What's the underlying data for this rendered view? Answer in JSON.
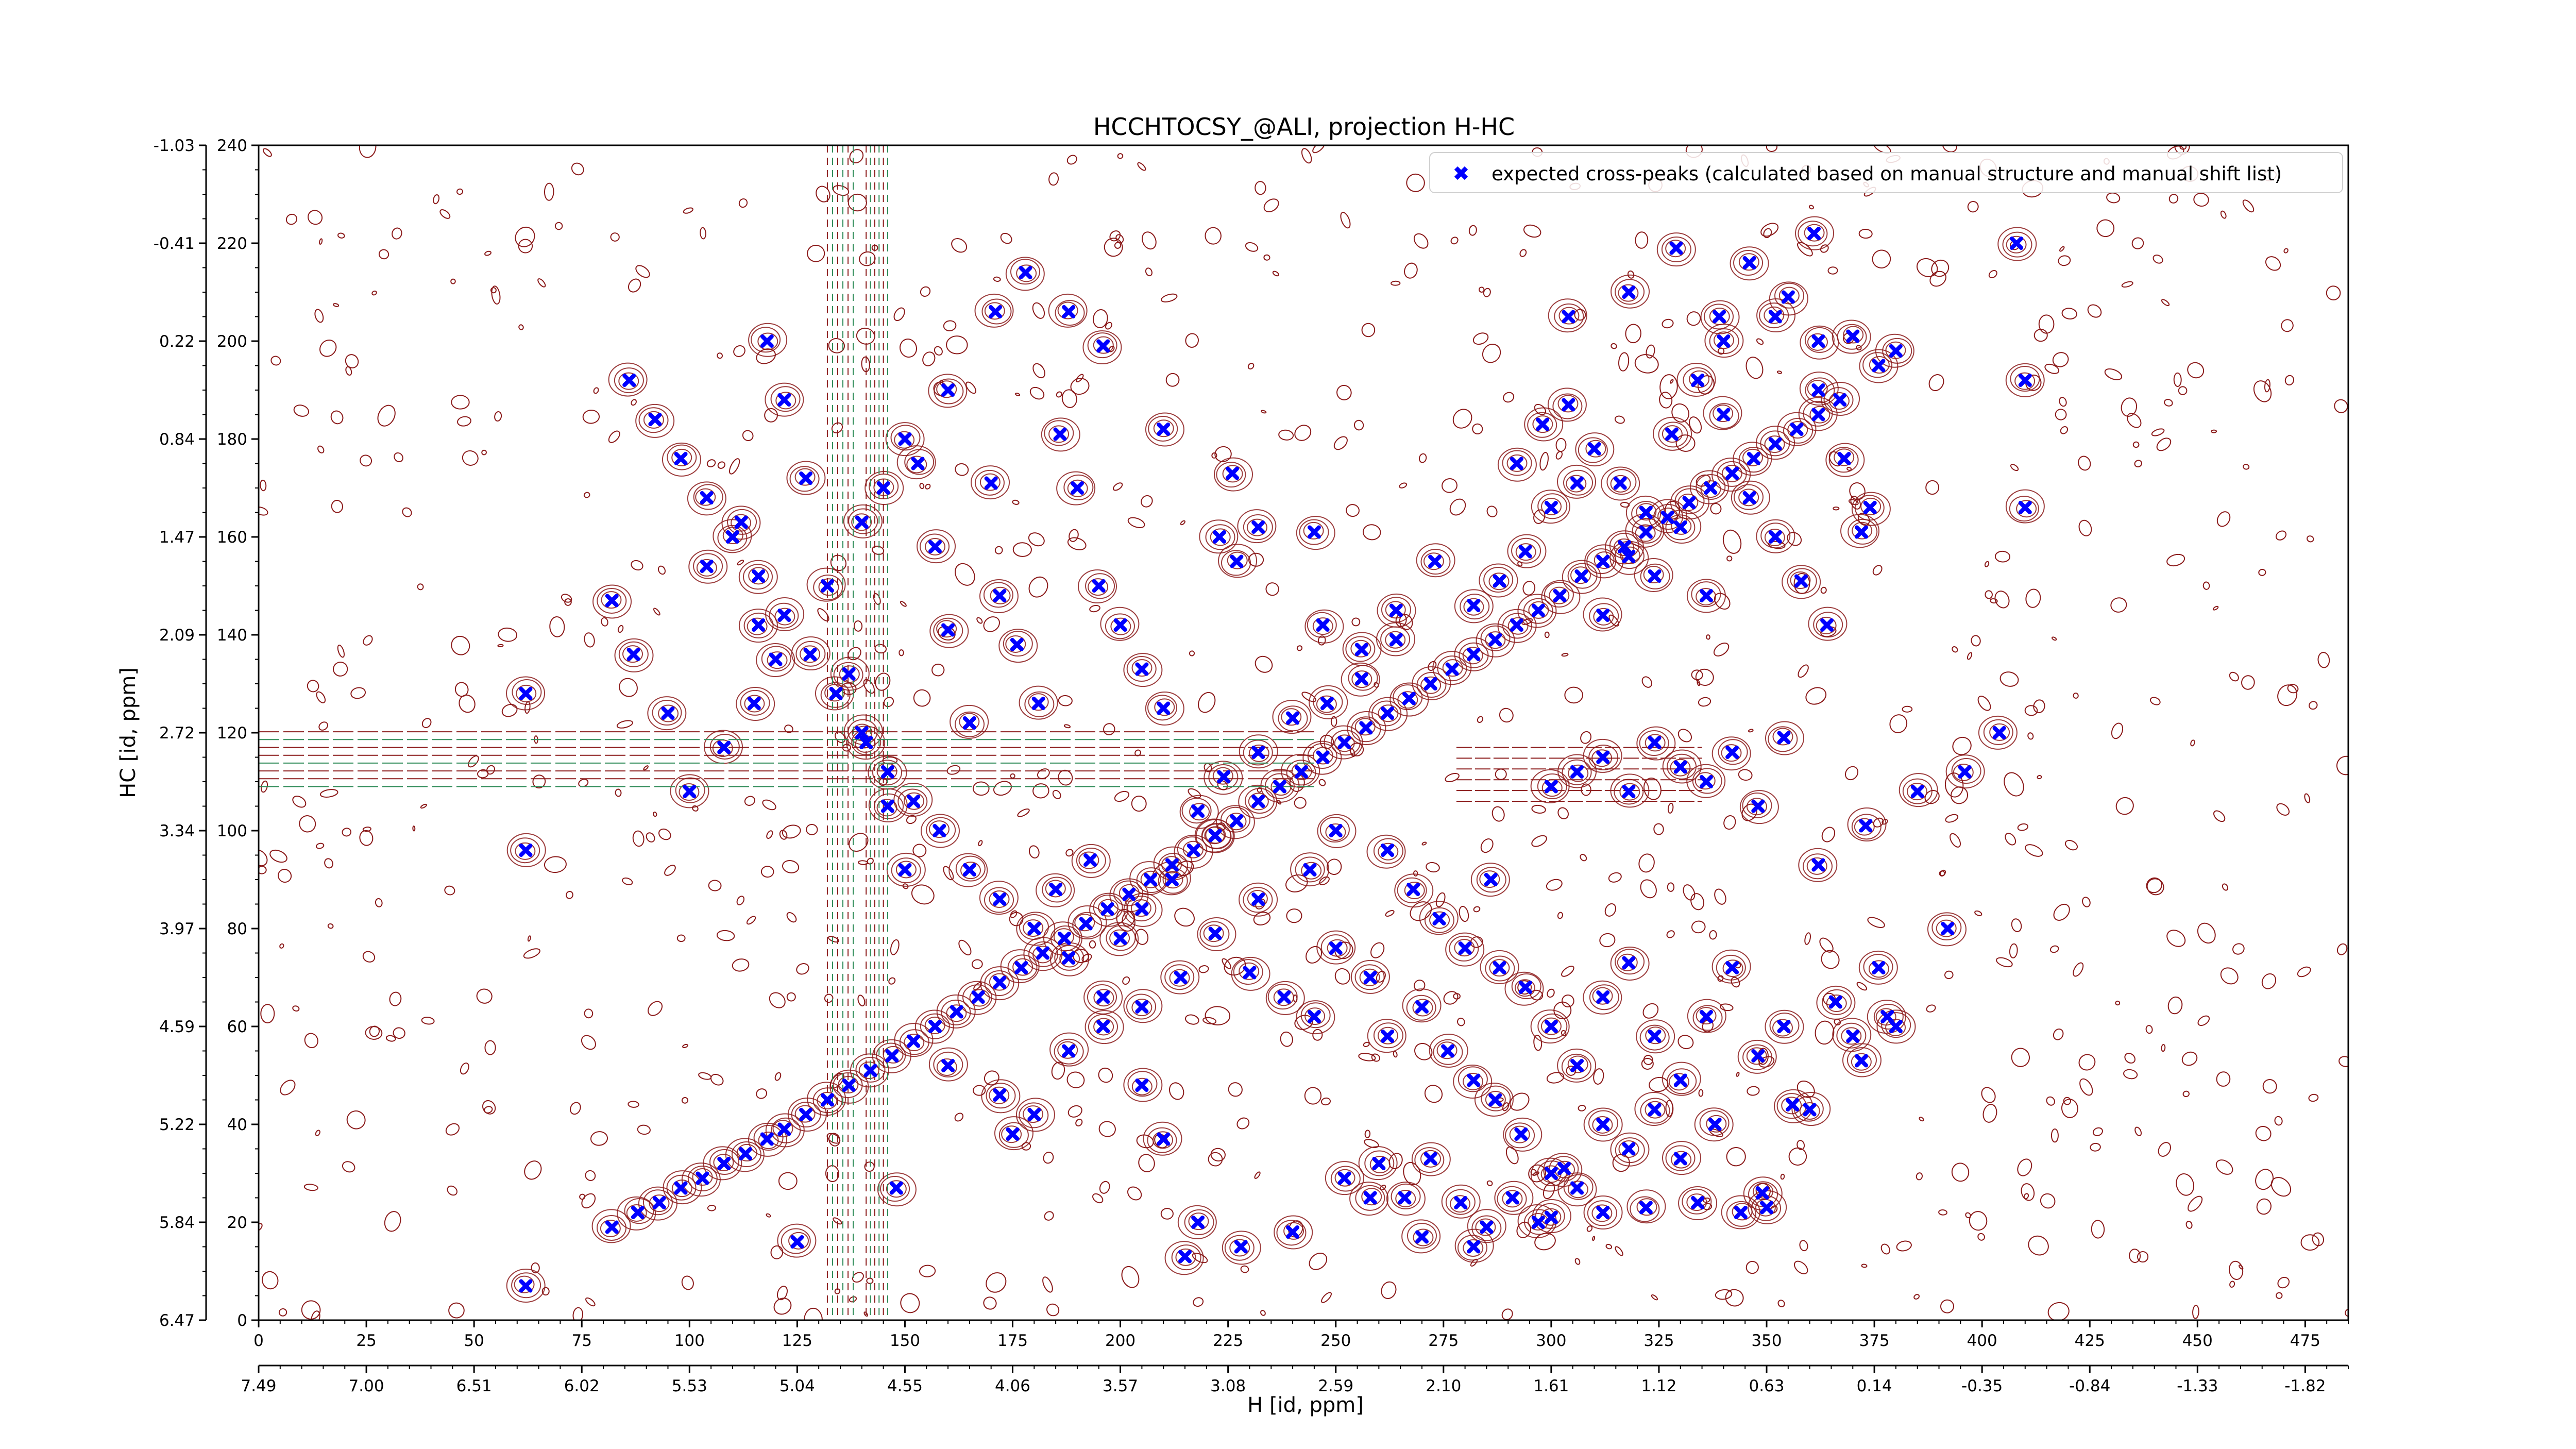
{
  "chart_data": {
    "type": "scatter",
    "title": "HCCHTOCSY_@ALI, projection H-HC",
    "xlabel_top": "",
    "xlabel_bottom": "H [id, ppm]",
    "ylabel": "HC [id, ppm]",
    "legend": {
      "placement": "top-right",
      "entries": [
        "expected cross-peaks (calculated based on manual structure and manual shift list)"
      ]
    },
    "grid": false,
    "colors": {
      "markers": "#0000ff",
      "contour_positive": "#8b1a1a",
      "contour_negative": "#2e8b57"
    },
    "xlim": [
      0,
      485
    ],
    "ylim": [
      0,
      240
    ],
    "x_ticks_index": [
      "0",
      "25",
      "50",
      "75",
      "100",
      "125",
      "150",
      "175",
      "200",
      "225",
      "250",
      "275",
      "300",
      "325",
      "350",
      "375",
      "400",
      "425",
      "450",
      "475"
    ],
    "x_ticks_ppm": [
      "7.49",
      "7.00",
      "6.51",
      "6.02",
      "5.53",
      "5.04",
      "4.55",
      "4.06",
      "3.57",
      "3.08",
      "2.59",
      "2.10",
      "1.61",
      "1.12",
      "0.63",
      "0.14",
      "-0.35",
      "-0.84",
      "-1.33",
      "-1.82"
    ],
    "y_ticks_index": [
      "0",
      "20",
      "40",
      "60",
      "80",
      "100",
      "120",
      "140",
      "160",
      "180",
      "200",
      "220",
      "240"
    ],
    "y_ticks_ppm": [
      "6.47",
      "5.84",
      "5.22",
      "4.59",
      "3.97",
      "3.34",
      "2.72",
      "2.09",
      "1.47",
      "0.84",
      "0.22",
      "-0.41",
      "-1.03"
    ],
    "series": [
      {
        "name": "expected cross-peaks (calculated based on manual structure and manual shift list)",
        "diagonal_points": [
          [
            82,
            19
          ],
          [
            88,
            22
          ],
          [
            93,
            24
          ],
          [
            98,
            27
          ],
          [
            103,
            29
          ],
          [
            108,
            32
          ],
          [
            113,
            34
          ],
          [
            118,
            37
          ],
          [
            122,
            39
          ],
          [
            127,
            42
          ],
          [
            132,
            45
          ],
          [
            137,
            48
          ],
          [
            142,
            51
          ],
          [
            147,
            54
          ],
          [
            152,
            57
          ],
          [
            157,
            60
          ],
          [
            162,
            63
          ],
          [
            167,
            66
          ],
          [
            172,
            69
          ],
          [
            177,
            72
          ],
          [
            182,
            75
          ],
          [
            187,
            78
          ],
          [
            192,
            81
          ],
          [
            197,
            84
          ],
          [
            202,
            87
          ],
          [
            207,
            90
          ],
          [
            212,
            93
          ],
          [
            217,
            96
          ],
          [
            222,
            99
          ],
          [
            227,
            102
          ],
          [
            232,
            106
          ],
          [
            237,
            109
          ],
          [
            242,
            112
          ],
          [
            247,
            115
          ],
          [
            252,
            118
          ],
          [
            257,
            121
          ],
          [
            262,
            124
          ],
          [
            267,
            127
          ],
          [
            272,
            130
          ],
          [
            277,
            133
          ],
          [
            282,
            136
          ],
          [
            287,
            139
          ],
          [
            292,
            142
          ],
          [
            297,
            145
          ],
          [
            302,
            148
          ],
          [
            307,
            152
          ],
          [
            312,
            155
          ],
          [
            317,
            158
          ],
          [
            322,
            161
          ],
          [
            327,
            164
          ],
          [
            332,
            167
          ],
          [
            337,
            170
          ],
          [
            342,
            173
          ],
          [
            347,
            176
          ],
          [
            352,
            179
          ],
          [
            357,
            182
          ],
          [
            362,
            185
          ],
          [
            367,
            188
          ]
        ],
        "offdiagonal_points": [
          [
            62,
            7
          ],
          [
            62,
            96
          ],
          [
            62,
            128
          ],
          [
            82,
            147
          ],
          [
            87,
            136
          ],
          [
            95,
            124
          ],
          [
            104,
            154
          ],
          [
            112,
            163
          ],
          [
            116,
            142
          ],
          [
            118,
            200
          ],
          [
            122,
            188
          ],
          [
            127,
            172
          ],
          [
            132,
            150
          ],
          [
            137,
            132
          ],
          [
            141,
            118
          ],
          [
            146,
            105
          ],
          [
            150,
            92
          ],
          [
            153,
            175
          ],
          [
            157,
            158
          ],
          [
            160,
            141
          ],
          [
            165,
            122
          ],
          [
            170,
            171
          ],
          [
            172,
            148
          ],
          [
            176,
            138
          ],
          [
            181,
            126
          ],
          [
            186,
            181
          ],
          [
            190,
            170
          ],
          [
            195,
            150
          ],
          [
            200,
            142
          ],
          [
            205,
            133
          ],
          [
            210,
            125
          ],
          [
            222,
            99
          ],
          [
            223,
            160
          ],
          [
            227,
            155
          ],
          [
            232,
            162
          ],
          [
            245,
            161
          ],
          [
            230,
            71
          ],
          [
            238,
            66
          ],
          [
            245,
            62
          ],
          [
            250,
            76
          ],
          [
            258,
            70
          ],
          [
            262,
            58
          ],
          [
            270,
            64
          ],
          [
            276,
            55
          ],
          [
            282,
            49
          ],
          [
            288,
            72
          ],
          [
            294,
            68
          ],
          [
            300,
            60
          ],
          [
            306,
            52
          ],
          [
            312,
            66
          ],
          [
            318,
            73
          ],
          [
            324,
            58
          ],
          [
            330,
            49
          ],
          [
            336,
            62
          ],
          [
            342,
            72
          ],
          [
            348,
            54
          ],
          [
            354,
            60
          ],
          [
            360,
            43
          ],
          [
            366,
            65
          ],
          [
            372,
            53
          ],
          [
            378,
            62
          ],
          [
            287,
            45
          ],
          [
            293,
            38
          ],
          [
            300,
            30
          ],
          [
            306,
            27
          ],
          [
            312,
            40
          ],
          [
            318,
            35
          ],
          [
            324,
            43
          ],
          [
            330,
            33
          ],
          [
            338,
            40
          ],
          [
            344,
            22
          ],
          [
            350,
            23
          ],
          [
            356,
            44
          ],
          [
            260,
            32
          ],
          [
            266,
            25
          ],
          [
            272,
            33
          ],
          [
            279,
            24
          ],
          [
            285,
            19
          ],
          [
            291,
            25
          ],
          [
            297,
            20
          ],
          [
            303,
            31
          ],
          [
            300,
            109
          ],
          [
            306,
            112
          ],
          [
            312,
            115
          ],
          [
            318,
            108
          ],
          [
            324,
            118
          ],
          [
            330,
            113
          ],
          [
            336,
            110
          ],
          [
            342,
            116
          ],
          [
            348,
            105
          ],
          [
            354,
            119
          ],
          [
            292,
            175
          ],
          [
            298,
            183
          ],
          [
            304,
            187
          ],
          [
            310,
            178
          ],
          [
            316,
            171
          ],
          [
            322,
            165
          ],
          [
            328,
            181
          ],
          [
            334,
            192
          ],
          [
            340,
            185
          ],
          [
            346,
            168
          ],
          [
            352,
            160
          ],
          [
            358,
            151
          ],
          [
            364,
            142
          ],
          [
            370,
            201
          ],
          [
            376,
            195
          ],
          [
            282,
            146
          ],
          [
            288,
            151
          ],
          [
            294,
            157
          ],
          [
            300,
            166
          ],
          [
            306,
            171
          ],
          [
            312,
            144
          ],
          [
            318,
            156
          ],
          [
            324,
            152
          ],
          [
            330,
            162
          ],
          [
            336,
            148
          ],
          [
            340,
            200
          ],
          [
            352,
            205
          ],
          [
            362,
            200
          ],
          [
            372,
            161
          ],
          [
            380,
            198
          ],
          [
            408,
            220
          ],
          [
            410,
            192
          ],
          [
            410,
            166
          ],
          [
            370,
            58
          ],
          [
            376,
            72
          ],
          [
            380,
            60
          ],
          [
            392,
            80
          ],
          [
            215,
            13
          ],
          [
            218,
            20
          ],
          [
            228,
            15
          ],
          [
            240,
            18
          ],
          [
            252,
            29
          ],
          [
            258,
            25
          ],
          [
            270,
            17
          ],
          [
            282,
            15
          ],
          [
            300,
            21
          ],
          [
            312,
            22
          ],
          [
            322,
            23
          ],
          [
            334,
            24
          ],
          [
            349,
            26
          ],
          [
            125,
            16
          ],
          [
            148,
            27
          ],
          [
            160,
            52
          ],
          [
            172,
            46
          ],
          [
            175,
            38
          ],
          [
            180,
            42
          ],
          [
            188,
            55
          ],
          [
            196,
            60
          ],
          [
            205,
            48
          ],
          [
            210,
            37
          ],
          [
            185,
            88
          ],
          [
            193,
            94
          ],
          [
            200,
            78
          ],
          [
            205,
            84
          ],
          [
            212,
            90
          ],
          [
            218,
            104
          ],
          [
            224,
            111
          ],
          [
            232,
            116
          ],
          [
            240,
            123
          ],
          [
            248,
            126
          ],
          [
            256,
            131
          ],
          [
            264,
            139
          ],
          [
            100,
            108
          ],
          [
            108,
            117
          ],
          [
            115,
            126
          ],
          [
            120,
            135
          ],
          [
            140,
            163
          ],
          [
            145,
            170
          ],
          [
            150,
            180
          ],
          [
            160,
            190
          ],
          [
            171,
            206
          ],
          [
            178,
            214
          ],
          [
            188,
            206
          ],
          [
            196,
            199
          ],
          [
            210,
            182
          ],
          [
            226,
            173
          ],
          [
            247,
            142
          ],
          [
            256,
            137
          ],
          [
            264,
            145
          ],
          [
            273,
            155
          ],
          [
            262,
            96
          ],
          [
            268,
            88
          ],
          [
            274,
            82
          ],
          [
            280,
            76
          ],
          [
            286,
            90
          ],
          [
            250,
            100
          ],
          [
            244,
            92
          ],
          [
            232,
            86
          ],
          [
            222,
            79
          ],
          [
            214,
            70
          ],
          [
            205,
            64
          ],
          [
            196,
            66
          ],
          [
            188,
            74
          ],
          [
            180,
            80
          ],
          [
            172,
            86
          ],
          [
            165,
            92
          ],
          [
            158,
            100
          ],
          [
            152,
            106
          ],
          [
            146,
            112
          ],
          [
            140,
            120
          ],
          [
            134,
            128
          ],
          [
            128,
            136
          ],
          [
            122,
            144
          ],
          [
            116,
            152
          ],
          [
            110,
            160
          ],
          [
            104,
            168
          ],
          [
            98,
            176
          ],
          [
            92,
            184
          ],
          [
            86,
            192
          ],
          [
            304,
            205
          ],
          [
            318,
            210
          ],
          [
            329,
            219
          ],
          [
            339,
            205
          ],
          [
            346,
            216
          ],
          [
            355,
            209
          ],
          [
            362,
            190
          ],
          [
            368,
            176
          ],
          [
            374,
            166
          ],
          [
            361,
            222
          ],
          [
            362,
            93
          ],
          [
            373,
            101
          ],
          [
            385,
            108
          ],
          [
            396,
            112
          ],
          [
            404,
            120
          ]
        ]
      }
    ]
  }
}
